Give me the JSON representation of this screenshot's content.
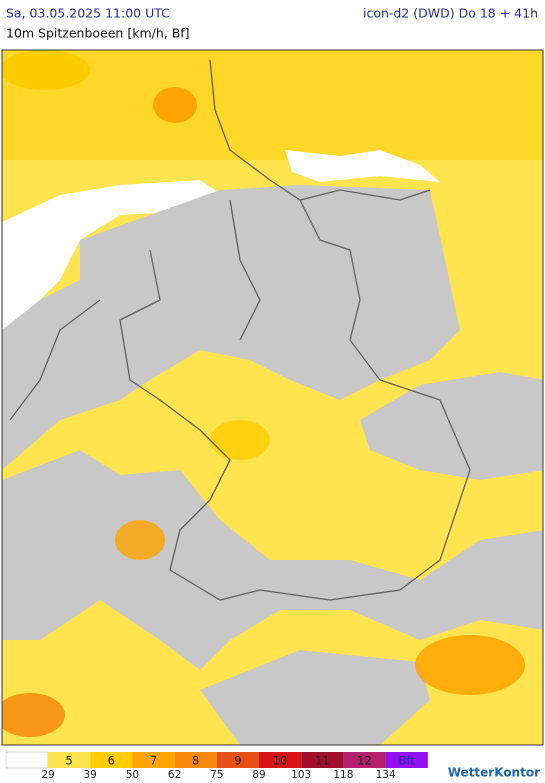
{
  "header": {
    "valid_time": "Sa, 03.05.2025 11:00 UTC",
    "model_run": "icon-d2 (DWD) Do 18 + 41h",
    "parameter": "10m Spitzenboeen [km/h, Bf]"
  },
  "legend": {
    "classes": [
      {
        "label": "5",
        "color": "#ffe34f"
      },
      {
        "label": "6",
        "color": "#ffcc00"
      },
      {
        "label": "7",
        "color": "#ffa400"
      },
      {
        "label": "8",
        "color": "#f58a0a"
      },
      {
        "label": "9",
        "color": "#e8501a"
      },
      {
        "label": "10",
        "color": "#d91414"
      },
      {
        "label": "11",
        "color": "#a0102c"
      },
      {
        "label": "12",
        "color": "#b4206c"
      },
      {
        "label": "Bft",
        "color": "#9010f0"
      }
    ],
    "thresholds": [
      29,
      39,
      50,
      62,
      75,
      89,
      103,
      118,
      134
    ]
  },
  "logo": "WetterKontor"
}
